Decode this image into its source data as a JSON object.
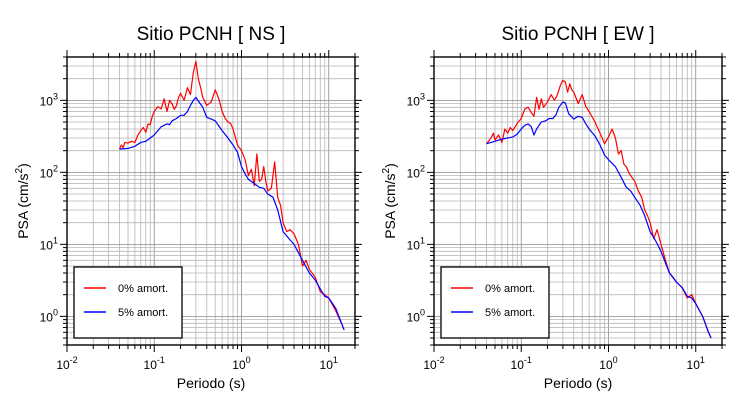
{
  "chart_data": [
    {
      "type": "line",
      "title": "Sitio PCNH [ NS ]",
      "xlabel": "Periodo (s)",
      "ylabel_main": "PSA (cm/s",
      "ylabel_sup": "2",
      "ylabel_close": ")",
      "xscale": "log",
      "yscale": "log",
      "xlim": [
        0.01,
        20
      ],
      "ylim": [
        0.4,
        4000
      ],
      "grid": true,
      "x_ticks": [
        {
          "base": "10",
          "exp": "-2"
        },
        {
          "base": "10",
          "exp": "-1"
        },
        {
          "base": "10",
          "exp": "0"
        },
        {
          "base": "10",
          "exp": "1"
        }
      ],
      "y_ticks": [
        {
          "base": "10",
          "exp": "0"
        },
        {
          "base": "10",
          "exp": "1"
        },
        {
          "base": "10",
          "exp": "2"
        },
        {
          "base": "10",
          "exp": "3"
        }
      ],
      "legend": {
        "position": "bottom-left",
        "entries": [
          "0% amort.",
          "5% amort."
        ]
      },
      "series": [
        {
          "name": "0% amort.",
          "color": "#ff0000",
          "points": [
            [
              0.04,
              210
            ],
            [
              0.042,
              240
            ],
            [
              0.044,
              220
            ],
            [
              0.046,
              260
            ],
            [
              0.05,
              255
            ],
            [
              0.055,
              270
            ],
            [
              0.06,
              260
            ],
            [
              0.065,
              330
            ],
            [
              0.07,
              380
            ],
            [
              0.075,
              420
            ],
            [
              0.08,
              360
            ],
            [
              0.085,
              470
            ],
            [
              0.09,
              460
            ],
            [
              0.095,
              600
            ],
            [
              0.1,
              700
            ],
            [
              0.11,
              820
            ],
            [
              0.12,
              760
            ],
            [
              0.13,
              1050
            ],
            [
              0.14,
              700
            ],
            [
              0.15,
              1000
            ],
            [
              0.16,
              900
            ],
            [
              0.17,
              750
            ],
            [
              0.18,
              850
            ],
            [
              0.19,
              1100
            ],
            [
              0.2,
              1250
            ],
            [
              0.22,
              1000
            ],
            [
              0.24,
              1500
            ],
            [
              0.26,
              1200
            ],
            [
              0.28,
              2400
            ],
            [
              0.3,
              3500
            ],
            [
              0.32,
              2000
            ],
            [
              0.34,
              1500
            ],
            [
              0.36,
              1100
            ],
            [
              0.4,
              850
            ],
            [
              0.45,
              950
            ],
            [
              0.5,
              1400
            ],
            [
              0.55,
              1050
            ],
            [
              0.6,
              700
            ],
            [
              0.65,
              560
            ],
            [
              0.7,
              500
            ],
            [
              0.75,
              480
            ],
            [
              0.8,
              400
            ],
            [
              0.9,
              240
            ],
            [
              1.0,
              200
            ],
            [
              1.1,
              150
            ],
            [
              1.2,
              90
            ],
            [
              1.3,
              110
            ],
            [
              1.4,
              65
            ],
            [
              1.5,
              180
            ],
            [
              1.6,
              75
            ],
            [
              1.7,
              80
            ],
            [
              1.8,
              120
            ],
            [
              1.9,
              75
            ],
            [
              2.0,
              55
            ],
            [
              2.2,
              60
            ],
            [
              2.4,
              140
            ],
            [
              2.6,
              45
            ],
            [
              2.8,
              35
            ],
            [
              3.0,
              20
            ],
            [
              3.3,
              15
            ],
            [
              3.6,
              16
            ],
            [
              4.0,
              14
            ],
            [
              4.5,
              10
            ],
            [
              5.0,
              5
            ],
            [
              5.5,
              6
            ],
            [
              6.0,
              4.5
            ],
            [
              7.0,
              3.5
            ],
            [
              8.0,
              2.2
            ],
            [
              9.0,
              2.0
            ],
            [
              10,
              1.8
            ],
            [
              12,
              1.2
            ],
            [
              14,
              0.8
            ],
            [
              15,
              0.65
            ]
          ]
        },
        {
          "name": "5% amort.",
          "color": "#0000ff",
          "points": [
            [
              0.04,
              210
            ],
            [
              0.05,
              215
            ],
            [
              0.06,
              230
            ],
            [
              0.07,
              260
            ],
            [
              0.08,
              270
            ],
            [
              0.09,
              300
            ],
            [
              0.1,
              330
            ],
            [
              0.11,
              380
            ],
            [
              0.12,
              430
            ],
            [
              0.14,
              470
            ],
            [
              0.15,
              460
            ],
            [
              0.16,
              520
            ],
            [
              0.18,
              560
            ],
            [
              0.2,
              620
            ],
            [
              0.22,
              620
            ],
            [
              0.24,
              700
            ],
            [
              0.26,
              850
            ],
            [
              0.28,
              1000
            ],
            [
              0.3,
              1100
            ],
            [
              0.32,
              980
            ],
            [
              0.36,
              800
            ],
            [
              0.4,
              580
            ],
            [
              0.45,
              550
            ],
            [
              0.5,
              520
            ],
            [
              0.55,
              440
            ],
            [
              0.6,
              380
            ],
            [
              0.7,
              300
            ],
            [
              0.8,
              240
            ],
            [
              0.9,
              190
            ],
            [
              1.0,
              120
            ],
            [
              1.1,
              95
            ],
            [
              1.2,
              80
            ],
            [
              1.4,
              70
            ],
            [
              1.6,
              62
            ],
            [
              1.8,
              60
            ],
            [
              2.0,
              50
            ],
            [
              2.3,
              45
            ],
            [
              2.6,
              30
            ],
            [
              3.0,
              15
            ],
            [
              3.5,
              12
            ],
            [
              4.0,
              10
            ],
            [
              5.0,
              6
            ],
            [
              6.0,
              4
            ],
            [
              7.0,
              3.2
            ],
            [
              8.0,
              2.4
            ],
            [
              9.0,
              1.9
            ],
            [
              10,
              1.8
            ],
            [
              12,
              1.3
            ],
            [
              15,
              0.65
            ]
          ]
        }
      ]
    },
    {
      "type": "line",
      "title": "Sitio PCNH [ EW ]",
      "xlabel": "Periodo (s)",
      "ylabel_main": "PSA (cm/s",
      "ylabel_sup": "2",
      "ylabel_close": ")",
      "xscale": "log",
      "yscale": "log",
      "xlim": [
        0.01,
        20
      ],
      "ylim": [
        0.4,
        4000
      ],
      "grid": true,
      "x_ticks": [
        {
          "base": "10",
          "exp": "-2"
        },
        {
          "base": "10",
          "exp": "-1"
        },
        {
          "base": "10",
          "exp": "0"
        },
        {
          "base": "10",
          "exp": "1"
        }
      ],
      "y_ticks": [
        {
          "base": "10",
          "exp": "0"
        },
        {
          "base": "10",
          "exp": "1"
        },
        {
          "base": "10",
          "exp": "2"
        },
        {
          "base": "10",
          "exp": "3"
        }
      ],
      "legend": {
        "position": "bottom-left",
        "entries": [
          "0% amort.",
          "5% amort."
        ]
      },
      "series": [
        {
          "name": "0% amort.",
          "color": "#ff0000",
          "points": [
            [
              0.04,
              250
            ],
            [
              0.045,
              300
            ],
            [
              0.048,
              350
            ],
            [
              0.05,
              280
            ],
            [
              0.055,
              330
            ],
            [
              0.06,
              260
            ],
            [
              0.065,
              400
            ],
            [
              0.07,
              350
            ],
            [
              0.075,
              420
            ],
            [
              0.08,
              380
            ],
            [
              0.09,
              480
            ],
            [
              0.1,
              560
            ],
            [
              0.11,
              760
            ],
            [
              0.12,
              800
            ],
            [
              0.13,
              680
            ],
            [
              0.14,
              600
            ],
            [
              0.15,
              1100
            ],
            [
              0.16,
              750
            ],
            [
              0.17,
              1050
            ],
            [
              0.18,
              800
            ],
            [
              0.2,
              950
            ],
            [
              0.22,
              1200
            ],
            [
              0.24,
              1000
            ],
            [
              0.26,
              1200
            ],
            [
              0.28,
              1600
            ],
            [
              0.3,
              1900
            ],
            [
              0.32,
              1800
            ],
            [
              0.34,
              1300
            ],
            [
              0.36,
              1700
            ],
            [
              0.38,
              1400
            ],
            [
              0.4,
              1300
            ],
            [
              0.45,
              900
            ],
            [
              0.5,
              1200
            ],
            [
              0.55,
              820
            ],
            [
              0.6,
              700
            ],
            [
              0.7,
              500
            ],
            [
              0.8,
              350
            ],
            [
              0.9,
              250
            ],
            [
              1.0,
              310
            ],
            [
              1.1,
              400
            ],
            [
              1.2,
              300
            ],
            [
              1.3,
              180
            ],
            [
              1.4,
              200
            ],
            [
              1.5,
              130
            ],
            [
              1.6,
              120
            ],
            [
              1.7,
              100
            ],
            [
              1.8,
              90
            ],
            [
              2.0,
              75
            ],
            [
              2.2,
              55
            ],
            [
              2.4,
              45
            ],
            [
              2.6,
              30
            ],
            [
              2.8,
              25
            ],
            [
              3.0,
              20
            ],
            [
              3.3,
              12
            ],
            [
              3.6,
              16
            ],
            [
              4.0,
              10
            ],
            [
              4.5,
              6
            ],
            [
              5.0,
              4
            ],
            [
              5.5,
              3.5
            ],
            [
              6.0,
              3
            ],
            [
              7.0,
              2.5
            ],
            [
              8.0,
              1.8
            ],
            [
              9.0,
              2.0
            ],
            [
              10,
              1.5
            ],
            [
              12,
              1.0
            ],
            [
              14,
              0.6
            ],
            [
              15,
              0.5
            ]
          ]
        },
        {
          "name": "5% amort.",
          "color": "#0000ff",
          "points": [
            [
              0.04,
              250
            ],
            [
              0.05,
              270
            ],
            [
              0.06,
              290
            ],
            [
              0.07,
              300
            ],
            [
              0.08,
              310
            ],
            [
              0.09,
              340
            ],
            [
              0.1,
              400
            ],
            [
              0.11,
              450
            ],
            [
              0.12,
              470
            ],
            [
              0.13,
              430
            ],
            [
              0.14,
              330
            ],
            [
              0.15,
              400
            ],
            [
              0.17,
              500
            ],
            [
              0.19,
              520
            ],
            [
              0.21,
              560
            ],
            [
              0.23,
              560
            ],
            [
              0.25,
              630
            ],
            [
              0.27,
              800
            ],
            [
              0.3,
              950
            ],
            [
              0.32,
              920
            ],
            [
              0.35,
              650
            ],
            [
              0.4,
              550
            ],
            [
              0.45,
              600
            ],
            [
              0.5,
              580
            ],
            [
              0.55,
              470
            ],
            [
              0.6,
              400
            ],
            [
              0.7,
              320
            ],
            [
              0.8,
              240
            ],
            [
              0.9,
              175
            ],
            [
              1.0,
              150
            ],
            [
              1.2,
              120
            ],
            [
              1.4,
              85
            ],
            [
              1.6,
              62
            ],
            [
              1.8,
              55
            ],
            [
              2.0,
              45
            ],
            [
              2.3,
              35
            ],
            [
              2.6,
              25
            ],
            [
              3.0,
              15
            ],
            [
              3.5,
              11
            ],
            [
              4.0,
              8
            ],
            [
              4.5,
              5.5
            ],
            [
              5.0,
              4
            ],
            [
              6.0,
              3
            ],
            [
              7.0,
              2.5
            ],
            [
              8.0,
              1.9
            ],
            [
              9.0,
              1.8
            ],
            [
              10,
              1.5
            ],
            [
              12,
              1.0
            ],
            [
              14,
              0.6
            ],
            [
              15,
              0.5
            ]
          ]
        }
      ]
    }
  ]
}
